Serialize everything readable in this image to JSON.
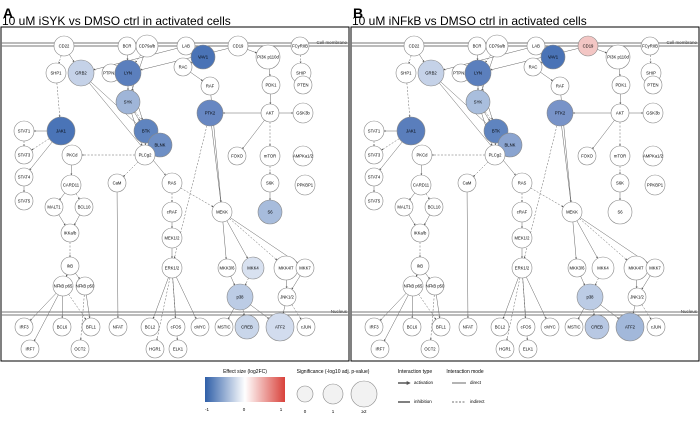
{
  "panels": [
    {
      "letter": "A",
      "title": "10 uM iSYK vs DMSO ctrl in activated cells",
      "colors": {
        "SYK": "#9fb5d8",
        "LYN": "#5b7fbd",
        "ZAP70": "#b8c8e3",
        "GRB2": "#c5d2e8",
        "JAK1": "#4a74b7",
        "BTK": "#5f84bf",
        "BLNK": "#6e8fc5",
        "VAV1": "#4a73b6",
        "PTK2": "#6787c2",
        "S6": "#a7bcdc",
        "p38": "#bccce5",
        "CREB": "#c9d6ea",
        "ATF2": "#d2dcee",
        "MKK4": "#d8e1f0",
        "CD19": "#ffffff"
      }
    },
    {
      "letter": "B",
      "title": "10 uM iNFkB vs DMSO ctrl in activated cells",
      "colors": {
        "SYK": "#a9bedd",
        "LYN": "#5b7fbd",
        "ZAP70": "#b8c8e3",
        "GRB2": "#c5d2e8",
        "JAK1": "#5a7ebc",
        "BTK": "#5f84bf",
        "BLNK": "#8aa4d0",
        "VAV1": "#4a73b6",
        "PTK2": "#7893c8",
        "S6": "#ffffff",
        "p38": "#bccce5",
        "CREB": "#b8c8e3",
        "ATF2": "#a2b8da",
        "MKK4": "#ffffff",
        "CD19": "#f3c6c4"
      }
    }
  ],
  "labels": {
    "cell_membrane": "Cell membrane",
    "nucleus": "Nucleus"
  },
  "nodes": {
    "CD22": "CD22",
    "BCR": "BCR",
    "CD79ab": "CD79a/b",
    "LAB": "LAB",
    "VAV1": "VAV1",
    "CD19": "CD19",
    "PI3K": "PI3K p110d",
    "FCyR": "FCyRIIB",
    "SHP1": "SHP1",
    "GRB2": "GRB2",
    "PTPN22": "PTPN22",
    "LYN": "LYN",
    "RAC": "RAC",
    "SHIP": "SHIP",
    "PDK1": "PDK1",
    "PTEN": "PTEN",
    "SYK": "SYK",
    "RAF": "RAF",
    "STAT1": "STAT1",
    "JAK1": "JAK1",
    "BTK": "BTK",
    "PTK2": "PTK2",
    "AKT": "AKT",
    "GSK3b": "GSK3b",
    "STAT3": "STAT3",
    "BLNK": "BLNK",
    "PKCd": "PKCd",
    "PLCg2": "PLCg2",
    "FOXO": "FOXO",
    "mTOR": "mTOR",
    "AMPK": "AMPKa1/2",
    "STAT4": "STAT4",
    "CARD11": "CARD11",
    "CaM": "CaM",
    "RAS": "RAS",
    "S6K": "S6K",
    "PPKBP1": "PPKBP1",
    "STAT5": "STAT5",
    "MALT1": "MALT1",
    "BCL10": "BCL10",
    "cRAF": "cRAF",
    "MEKK": "MEKK",
    "S6": "S6",
    "IKKab": "IKKa/b",
    "MEK12": "MEK1/2",
    "IKK": "IkB",
    "ERK12": "ERK1/2",
    "MKK36": "MKK3/6",
    "MKK4": "MKK4",
    "MKK47": "MKK4/7",
    "MKK7": "MKK7",
    "NFkBp65": "NFkB p65",
    "NFkBp50": "NFkB p50",
    "p38": "p38",
    "JNK12": "JNK1/2",
    "IRF3": "IRF3",
    "BCL6": "BCL6",
    "BFL1": "BFL1",
    "NFAT": "NFAT",
    "BCL2": "BCL2",
    "cFOS": "cFOS",
    "cMYC": "cMYC",
    "MSTIC": "MSTIC",
    "CREB": "CREB",
    "ATF2": "ATF2",
    "cJUN": "cJUN",
    "IRF7": "IRF7",
    "OCT2": "OCT2",
    "HGR1": "HGR1",
    "ELK1": "ELK1"
  },
  "legend": {
    "colorbar": {
      "title": "Effect size (log2FC)",
      "ticks": [
        "-1",
        "0",
        "1"
      ],
      "colors": [
        "#2f5fa8",
        "#ffffff",
        "#d9423b"
      ]
    },
    "size": {
      "title": "Significance (-log10 adj. p-value)",
      "ticks": [
        "0",
        "1",
        "≥2"
      ]
    },
    "interaction": {
      "title": "Interaction type",
      "items": [
        "activation",
        "inhibition"
      ]
    },
    "edges": {
      "title": "Interaction mode",
      "items": [
        "direct",
        "indirect"
      ]
    }
  }
}
